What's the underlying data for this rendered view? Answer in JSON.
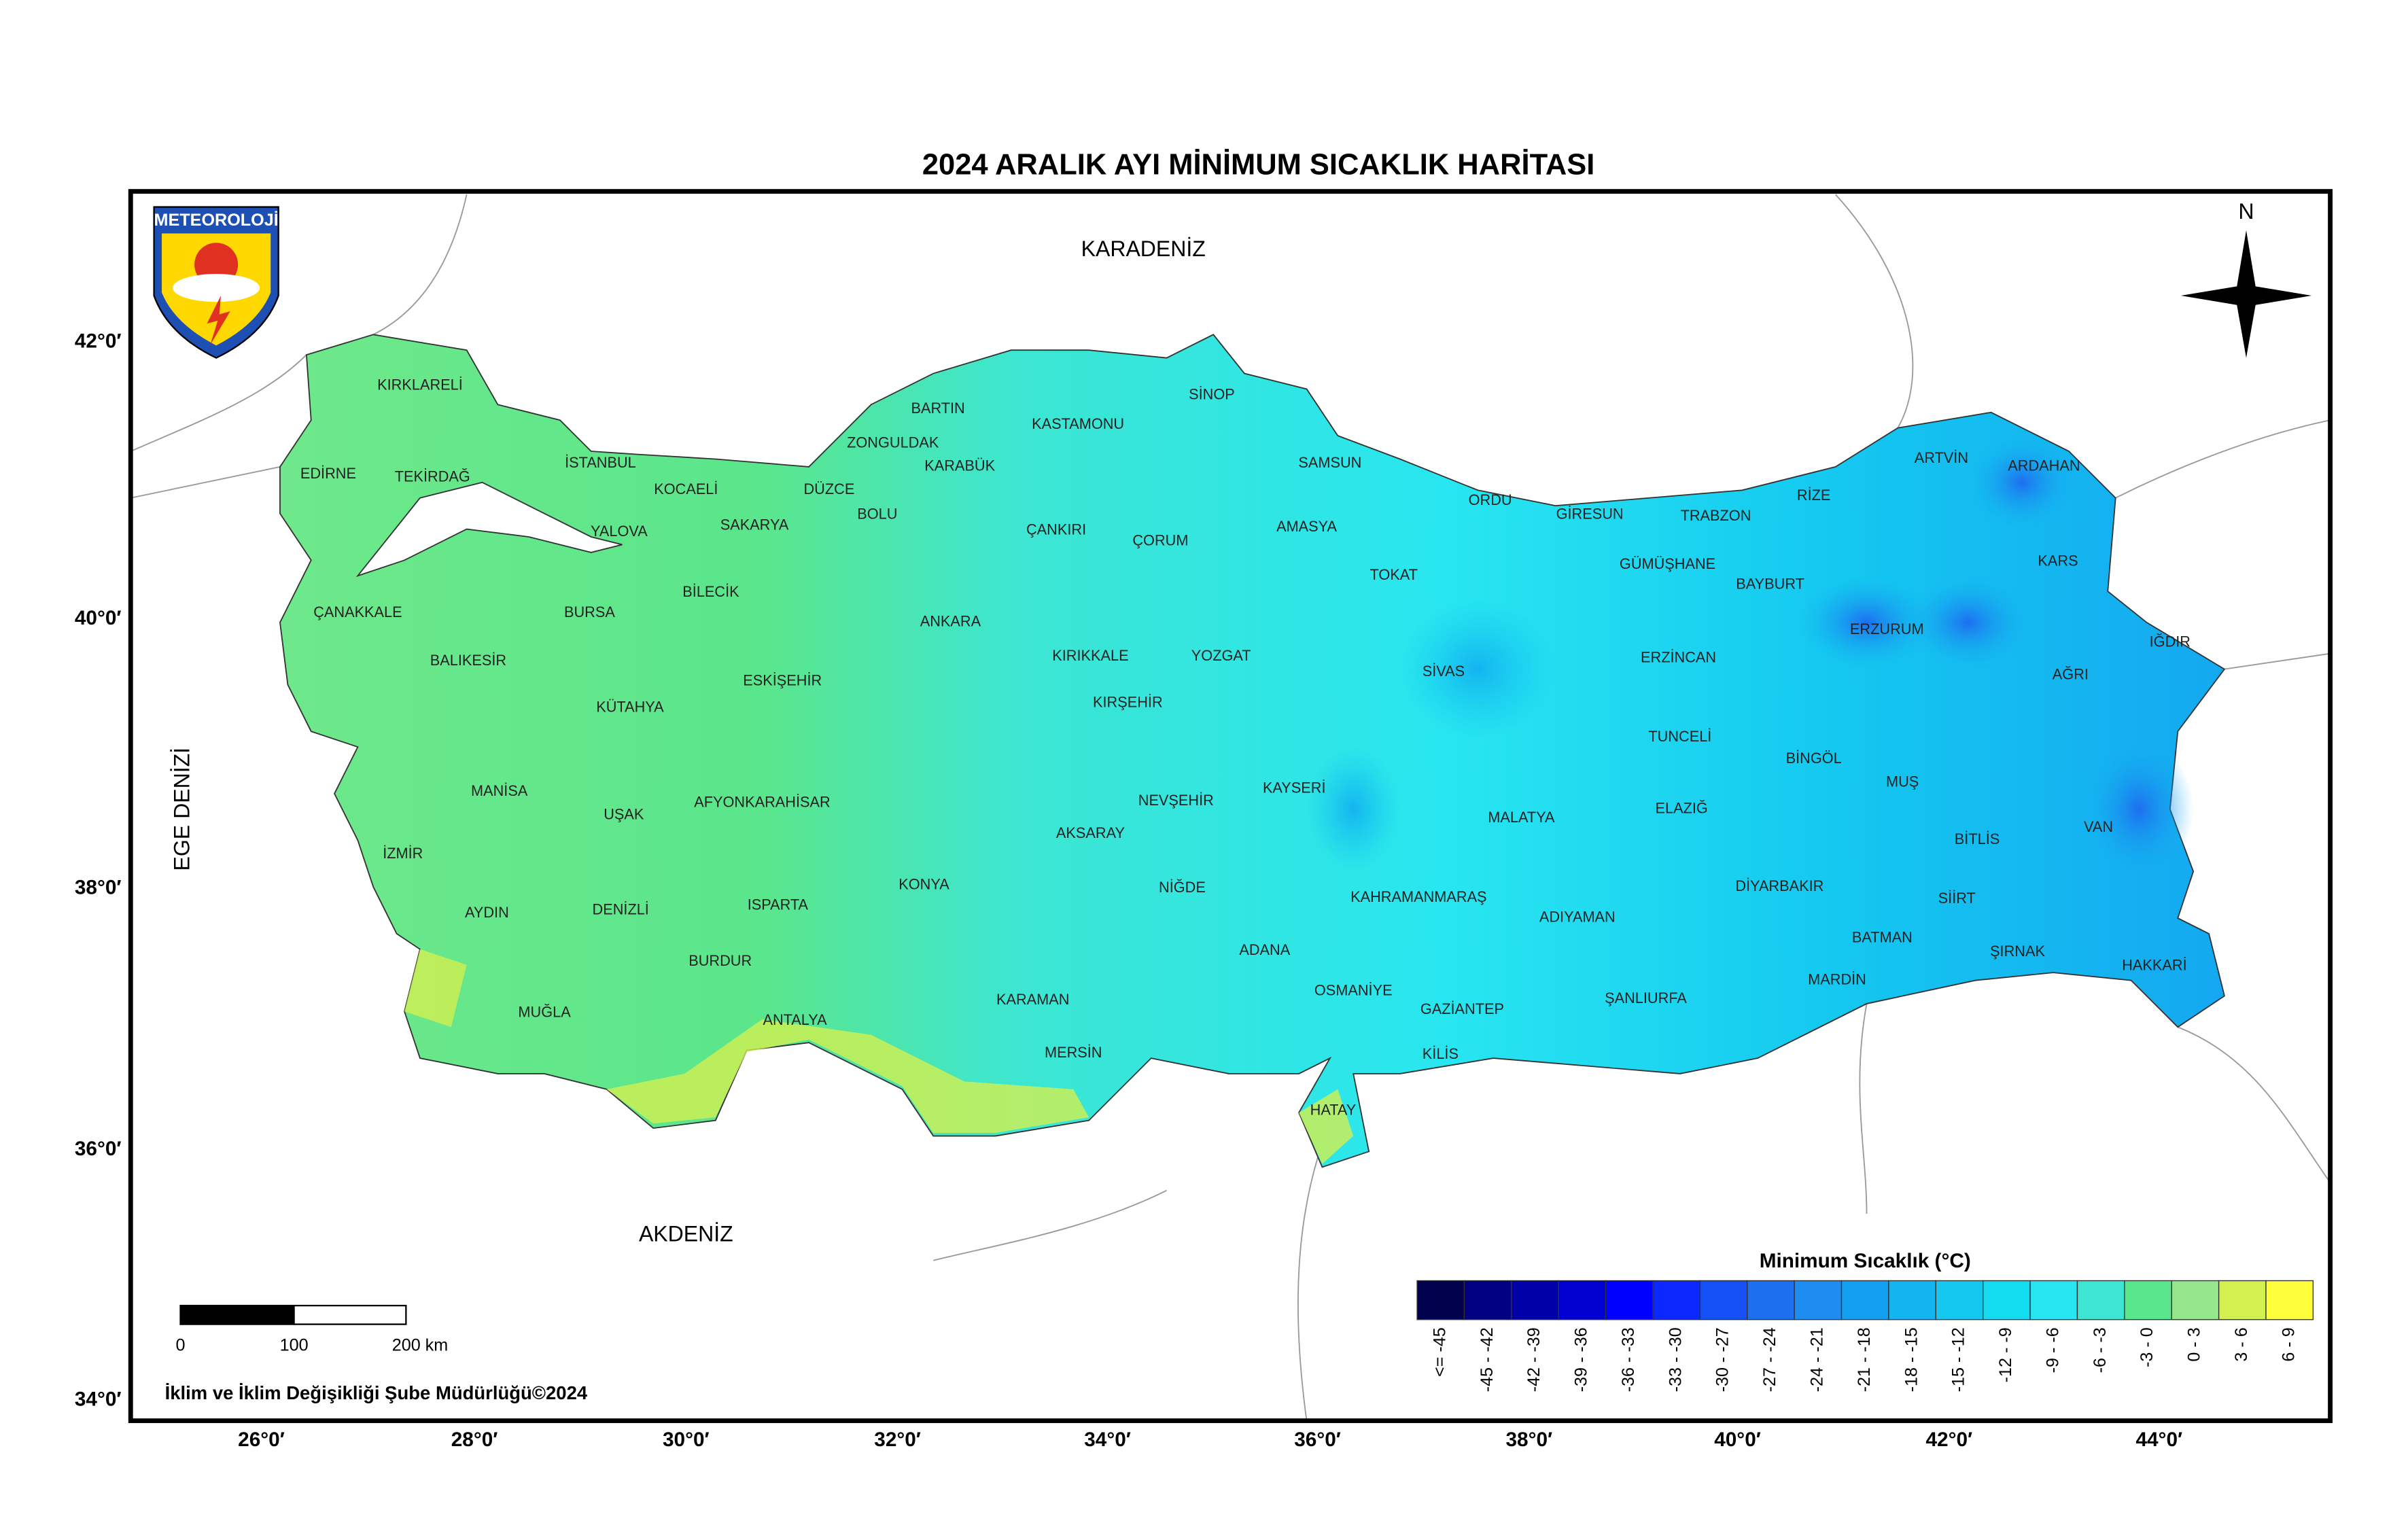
{
  "title": "2024 ARALIK AYI MİNİMUM SICAKLIK HARİTASI",
  "logo": "METEOROLOJİ",
  "north": "N",
  "seas": [
    "KARADENİZ",
    "AKDENİZ",
    "EGE DENİZİ"
  ],
  "provinces": [
    "KIRKLARELİ",
    "EDİRNE",
    "TEKİRDAĞ",
    "İSTANBUL",
    "KOCAELİ",
    "YALOVA",
    "SAKARYA",
    "DÜZCE",
    "BOLU",
    "ZONGULDAK",
    "BARTIN",
    "KARABÜK",
    "KASTAMONU",
    "SİNOP",
    "SAMSUN",
    "ORDU",
    "GİRESUN",
    "TRABZON",
    "RİZE",
    "ARTVİN",
    "ARDAHAN",
    "KARS",
    "IĞDIR",
    "AĞRI",
    "ERZURUM",
    "BAYBURT",
    "GÜMÜŞHANE",
    "ERZİNCAN",
    "TUNCELİ",
    "BİNGÖL",
    "MUŞ",
    "BİTLİS",
    "VAN",
    "HAKKARİ",
    "ŞIRNAK",
    "SİİRT",
    "BATMAN",
    "MARDİN",
    "DİYARBAKIR",
    "ELAZIĞ",
    "MALATYA",
    "ADIYAMAN",
    "ŞANLIURFA",
    "GAZİANTEP",
    "KİLİS",
    "HATAY",
    "OSMANİYE",
    "KAHRAMANMARAŞ",
    "ADANA",
    "MERSİN",
    "KARAMAN",
    "NİĞDE",
    "AKSARAY",
    "KONYA",
    "NEVŞEHİR",
    "KAYSERİ",
    "SİVAS",
    "TOKAT",
    "AMASYA",
    "ÇORUM",
    "YOZGAT",
    "KIRŞEHİR",
    "KIRIKKALE",
    "ÇANKIRI",
    "ANKARA",
    "ESKİŞEHİR",
    "BİLECİK",
    "BURSA",
    "ÇANAKKALE",
    "BALIKESİR",
    "KÜTAHYA",
    "MANİSA",
    "UŞAK",
    "AFYONKARAHİSAR",
    "İZMİR",
    "AYDIN",
    "DENİZLİ",
    "ISPARTA",
    "BURDUR",
    "MUĞLA",
    "ANTALYA"
  ],
  "lon_labels": [
    "26°0′",
    "28°0′",
    "30°0′",
    "32°0′",
    "34°0′",
    "36°0′",
    "38°0′",
    "40°0′",
    "42°0′",
    "44°0′"
  ],
  "lat_labels": [
    "42°0′",
    "40°0′",
    "38°0′",
    "36°0′",
    "34°0′"
  ],
  "scale_labels": [
    "0",
    "100",
    "200 km"
  ],
  "credit": "İklim ve İklim Değişikliği Şube Müdürlüğü©2024",
  "legend": {
    "title": "Minimum Sıcaklık (°C)",
    "items": [
      {
        "label": "<= -45",
        "color": "#00004d"
      },
      {
        "label": "-45 - -42",
        "color": "#000080"
      },
      {
        "label": "-42 - -39",
        "color": "#0000a8"
      },
      {
        "label": "-39 - -36",
        "color": "#0000d0"
      },
      {
        "label": "-36 - -33",
        "color": "#0000ff"
      },
      {
        "label": "-33 - -30",
        "color": "#0a28ff"
      },
      {
        "label": "-30 - -27",
        "color": "#1450f5"
      },
      {
        "label": "-27 - -24",
        "color": "#1e6ef0"
      },
      {
        "label": "-24 - -21",
        "color": "#1e8cf0"
      },
      {
        "label": "-21 - -18",
        "color": "#14a0f0"
      },
      {
        "label": "-18 - -15",
        "color": "#14b4f0"
      },
      {
        "label": "-15 - -12",
        "color": "#14c8f0"
      },
      {
        "label": "-12 - -9",
        "color": "#14dcf0"
      },
      {
        "label": "-9 - -6",
        "color": "#28e6f0"
      },
      {
        "label": "-6 - -3",
        "color": "#3ce6d2"
      },
      {
        "label": "-3 - 0",
        "color": "#5ae68c"
      },
      {
        "label": "0 - 3",
        "color": "#96e68c"
      },
      {
        "label": "3 - 6",
        "color": "#d2f050"
      },
      {
        "label": "6 - 9",
        "color": "#ffff3c"
      }
    ]
  }
}
